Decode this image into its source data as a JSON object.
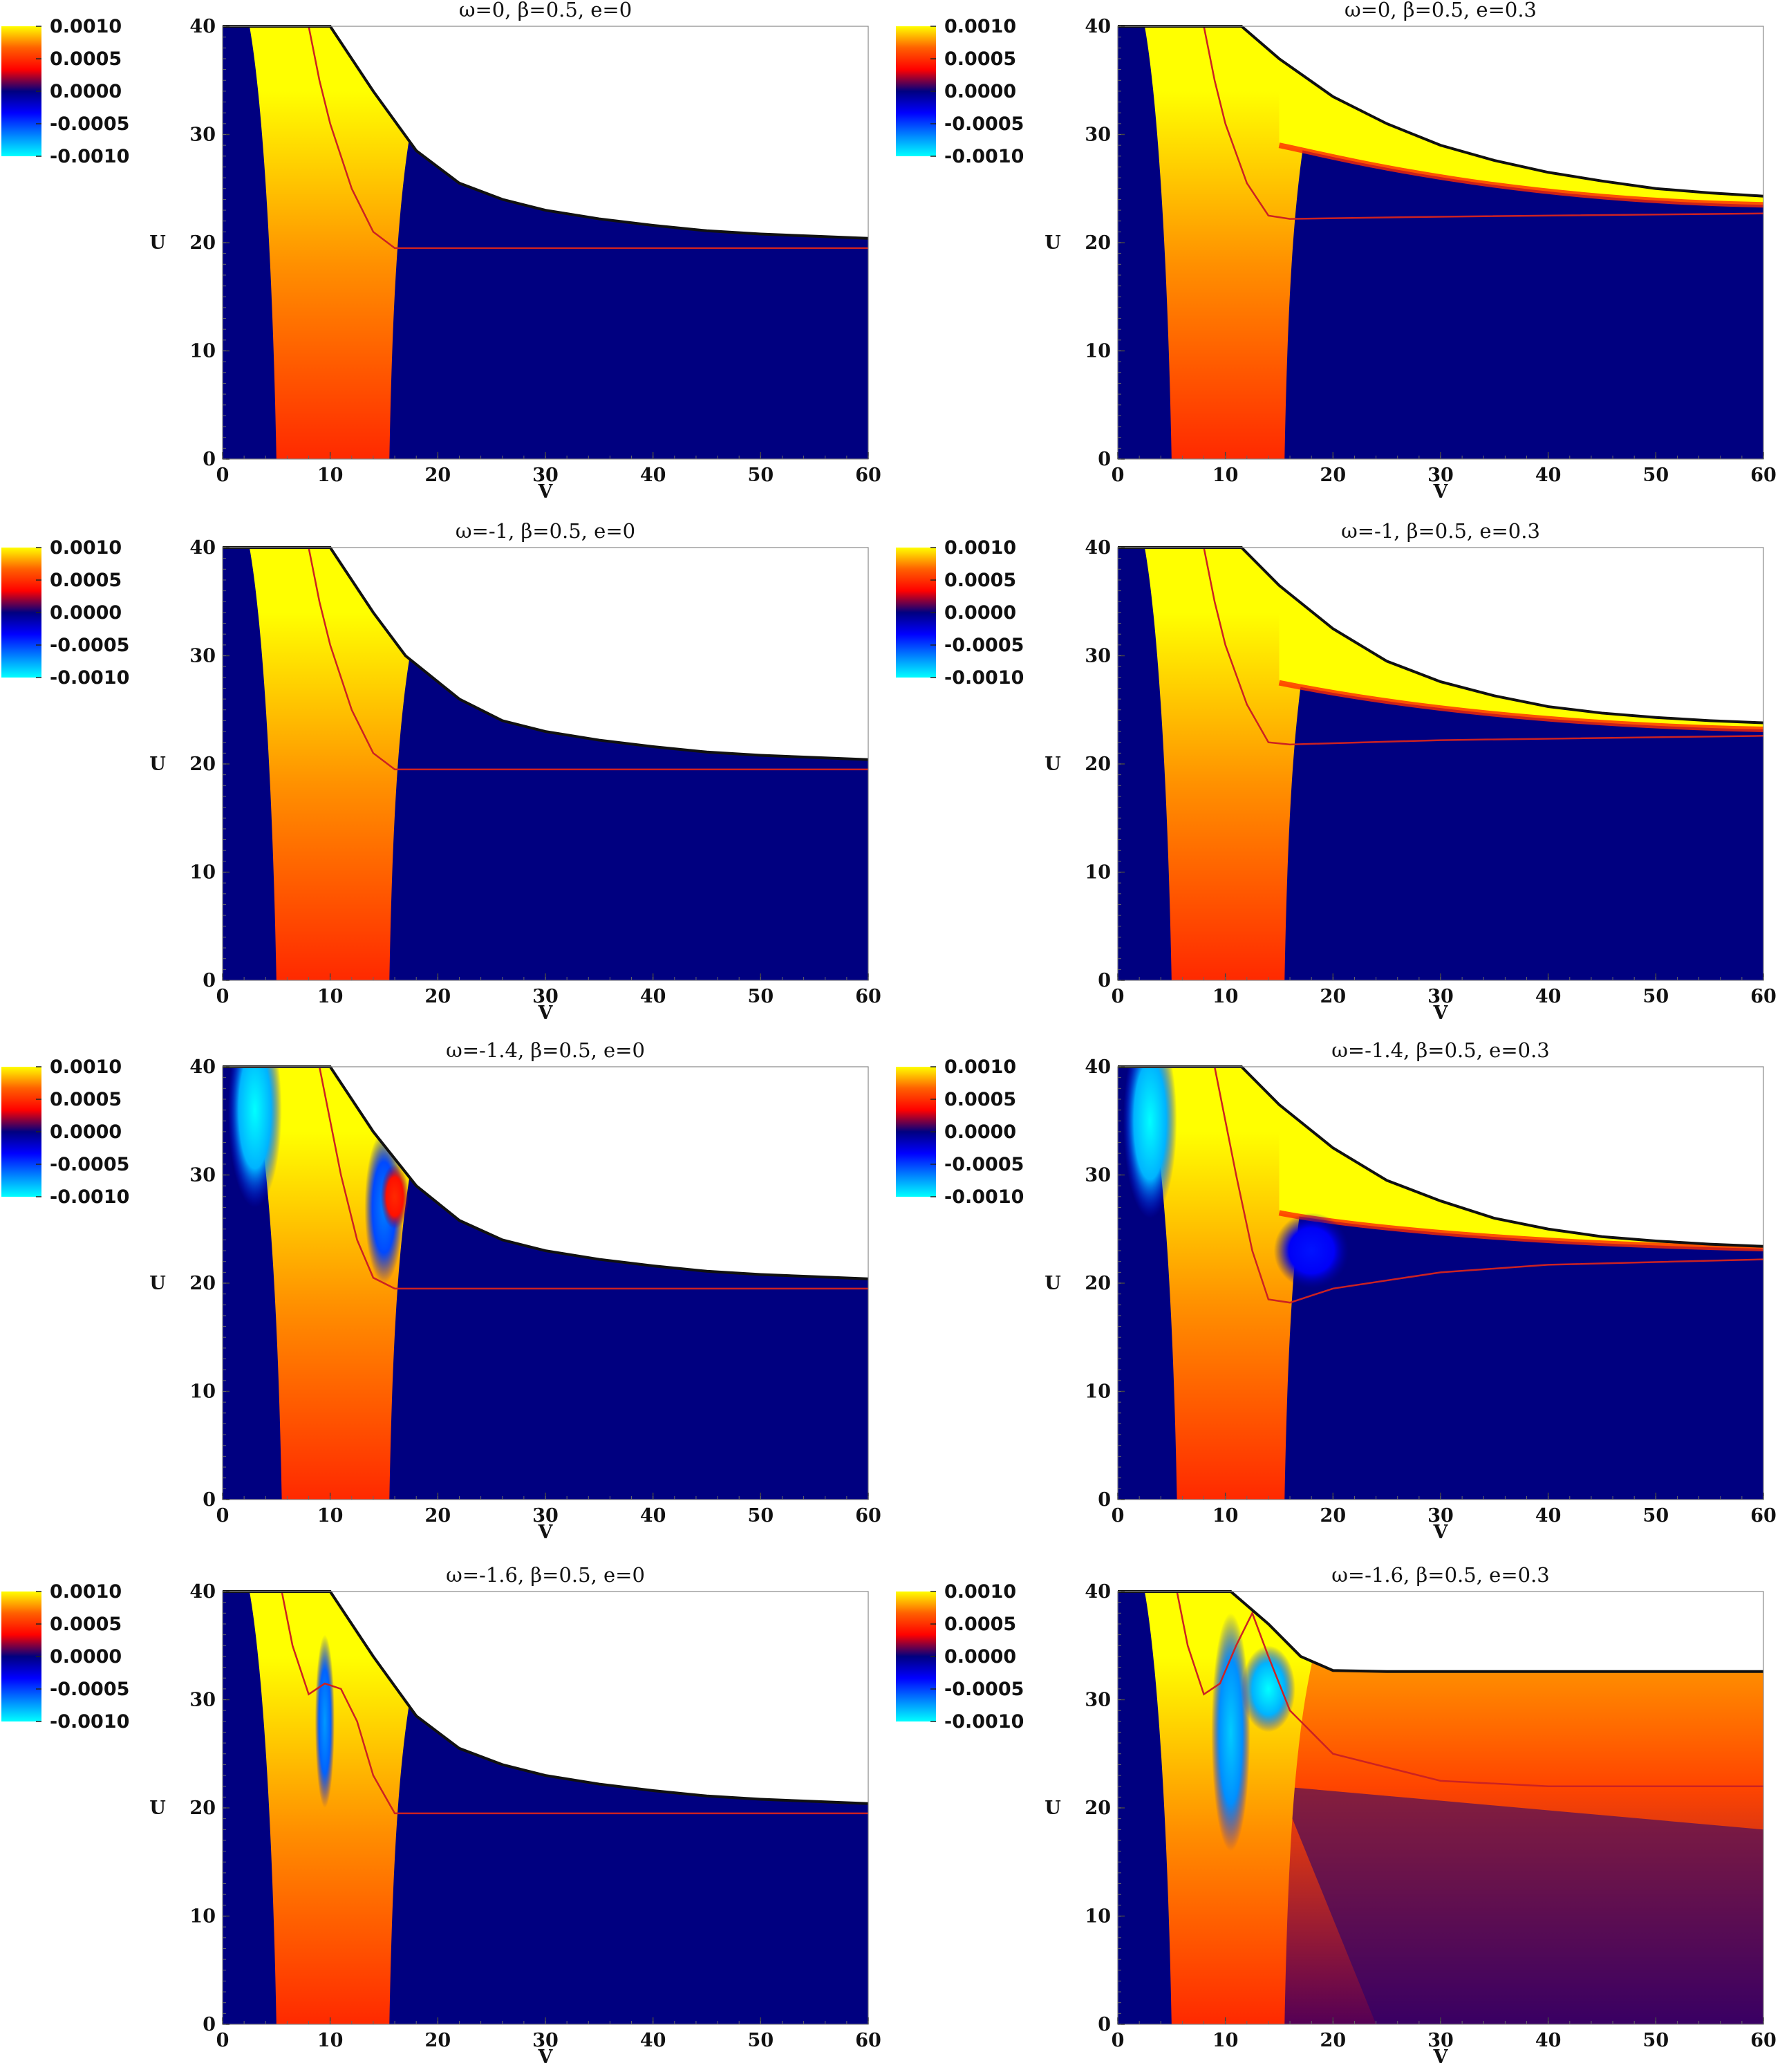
{
  "colormap": {
    "stops": [
      {
        "value": -0.001,
        "color": "#00ffff"
      },
      {
        "value": -0.0005,
        "color": "#0080ff"
      },
      {
        "value": -0.00015,
        "color": "#0000ff"
      },
      {
        "value": 0.0,
        "color": "#000080"
      },
      {
        "value": 0.00015,
        "color": "#ff0000"
      },
      {
        "value": 0.0005,
        "color": "#ff6000"
      },
      {
        "value": 0.001,
        "color": "#ffff00"
      }
    ],
    "tick_labels": [
      "0.0010",
      "0.0005",
      "0.0000",
      "-0.0005",
      "-0.0010"
    ]
  },
  "chart_data": [
    {
      "type": "heatmap",
      "title": "ω=0,   β=0.5,   e=0",
      "xlabel": "V",
      "ylabel": "U",
      "xlim": [
        0,
        60
      ],
      "ylim": [
        0,
        40
      ],
      "xticks": [
        "0",
        "10",
        "20",
        "30",
        "40",
        "50",
        "60"
      ],
      "yticks": [
        "0",
        "10",
        "20",
        "30",
        "40"
      ],
      "boundary": [
        [
          0,
          40
        ],
        [
          10,
          40
        ],
        [
          14,
          34
        ],
        [
          18,
          28.5
        ],
        [
          22,
          25.5
        ],
        [
          26,
          24
        ],
        [
          30,
          23
        ],
        [
          35,
          22.2
        ],
        [
          40,
          21.6
        ],
        [
          45,
          21.1
        ],
        [
          50,
          20.8
        ],
        [
          55,
          20.6
        ],
        [
          60,
          20.4
        ]
      ],
      "red_curve": [
        [
          8,
          40
        ],
        [
          9,
          35
        ],
        [
          10,
          31
        ],
        [
          12,
          25
        ],
        [
          14,
          21
        ],
        [
          16,
          19.5
        ],
        [
          60,
          19.5
        ]
      ],
      "features": [
        {
          "kind": "band",
          "v_left": 5,
          "v_right": 15.5,
          "u_bottom": 0,
          "u_top": 40,
          "value_bottom": 0.0003,
          "value_top": 0.001
        }
      ]
    },
    {
      "type": "heatmap",
      "title": "ω=0,   β=0.5,   e=0.3",
      "xlabel": "V",
      "ylabel": "U",
      "xlim": [
        0,
        60
      ],
      "ylim": [
        0,
        40
      ],
      "xticks": [
        "0",
        "10",
        "20",
        "30",
        "40",
        "50",
        "60"
      ],
      "yticks": [
        "0",
        "10",
        "20",
        "30",
        "40"
      ],
      "boundary": [
        [
          0,
          40
        ],
        [
          11.5,
          40
        ],
        [
          15,
          37
        ],
        [
          20,
          33.5
        ],
        [
          25,
          31
        ],
        [
          30,
          29
        ],
        [
          35,
          27.6
        ],
        [
          40,
          26.5
        ],
        [
          45,
          25.7
        ],
        [
          50,
          25
        ],
        [
          55,
          24.6
        ],
        [
          60,
          24.3
        ]
      ],
      "red_curve": [
        [
          8,
          40
        ],
        [
          9,
          35
        ],
        [
          10,
          31
        ],
        [
          12,
          25.5
        ],
        [
          14,
          22.5
        ],
        [
          16,
          22.2
        ],
        [
          30,
          22.4
        ],
        [
          60,
          22.7
        ]
      ],
      "features": [
        {
          "kind": "band",
          "v_left": 5,
          "v_right": 15.5,
          "u_bottom": 0,
          "u_top": 40,
          "value_bottom": 0.0003,
          "value_top": 0.001
        },
        {
          "kind": "strip",
          "v_left": 15,
          "u_near": 29,
          "u_far": 23.5,
          "value": 0.001
        }
      ]
    },
    {
      "type": "heatmap",
      "title": "ω=-1,   β=0.5,   e=0",
      "xlabel": "V",
      "ylabel": "U",
      "xlim": [
        0,
        60
      ],
      "ylim": [
        0,
        40
      ],
      "xticks": [
        "0",
        "10",
        "20",
        "30",
        "40",
        "50",
        "60"
      ],
      "yticks": [
        "0",
        "10",
        "20",
        "30",
        "40"
      ],
      "boundary": [
        [
          0,
          40
        ],
        [
          10,
          40
        ],
        [
          14,
          34
        ],
        [
          17,
          30
        ],
        [
          22,
          26
        ],
        [
          26,
          24
        ],
        [
          30,
          23
        ],
        [
          35,
          22.2
        ],
        [
          40,
          21.6
        ],
        [
          45,
          21.1
        ],
        [
          50,
          20.8
        ],
        [
          55,
          20.6
        ],
        [
          60,
          20.4
        ]
      ],
      "red_curve": [
        [
          8,
          40
        ],
        [
          9,
          35
        ],
        [
          10,
          31
        ],
        [
          12,
          25
        ],
        [
          14,
          21
        ],
        [
          16,
          19.5
        ],
        [
          60,
          19.5
        ]
      ],
      "features": [
        {
          "kind": "band",
          "v_left": 5,
          "v_right": 15.5,
          "u_bottom": 0,
          "u_top": 40,
          "value_bottom": 0.0003,
          "value_top": 0.001
        }
      ]
    },
    {
      "type": "heatmap",
      "title": "ω=-1,   β=0.5,   e=0.3",
      "xlabel": "V",
      "ylabel": "U",
      "xlim": [
        0,
        60
      ],
      "ylim": [
        0,
        40
      ],
      "xticks": [
        "0",
        "10",
        "20",
        "30",
        "40",
        "50",
        "60"
      ],
      "yticks": [
        "0",
        "10",
        "20",
        "30",
        "40"
      ],
      "boundary": [
        [
          0,
          40
        ],
        [
          11.5,
          40
        ],
        [
          15,
          36.5
        ],
        [
          20,
          32.5
        ],
        [
          25,
          29.5
        ],
        [
          30,
          27.6
        ],
        [
          35,
          26.3
        ],
        [
          40,
          25.3
        ],
        [
          45,
          24.7
        ],
        [
          50,
          24.3
        ],
        [
          55,
          24
        ],
        [
          60,
          23.8
        ]
      ],
      "red_curve": [
        [
          8,
          40
        ],
        [
          9,
          35
        ],
        [
          10,
          31
        ],
        [
          12,
          25.5
        ],
        [
          14,
          22
        ],
        [
          16,
          21.8
        ],
        [
          30,
          22.2
        ],
        [
          60,
          22.6
        ]
      ],
      "features": [
        {
          "kind": "band",
          "v_left": 5,
          "v_right": 15.5,
          "u_bottom": 0,
          "u_top": 40,
          "value_bottom": 0.0003,
          "value_top": 0.001
        },
        {
          "kind": "strip",
          "v_left": 15,
          "u_near": 27.5,
          "u_far": 23.2,
          "value": 0.001
        }
      ]
    },
    {
      "type": "heatmap",
      "title": "ω=-1.4,   β=0.5,   e=0",
      "xlabel": "V",
      "ylabel": "U",
      "xlim": [
        0,
        60
      ],
      "ylim": [
        0,
        40
      ],
      "xticks": [
        "0",
        "10",
        "20",
        "30",
        "40",
        "50",
        "60"
      ],
      "yticks": [
        "0",
        "10",
        "20",
        "30",
        "40"
      ],
      "boundary": [
        [
          0,
          40
        ],
        [
          10,
          40
        ],
        [
          14,
          34
        ],
        [
          18,
          29
        ],
        [
          22,
          25.8
        ],
        [
          26,
          24
        ],
        [
          30,
          23
        ],
        [
          35,
          22.2
        ],
        [
          40,
          21.6
        ],
        [
          45,
          21.1
        ],
        [
          50,
          20.8
        ],
        [
          55,
          20.6
        ],
        [
          60,
          20.4
        ]
      ],
      "red_curve": [
        [
          9,
          40
        ],
        [
          10,
          35
        ],
        [
          11,
          30
        ],
        [
          12.5,
          24
        ],
        [
          14,
          20.5
        ],
        [
          16,
          19.5
        ],
        [
          60,
          19.5
        ]
      ],
      "features": [
        {
          "kind": "band",
          "v_left": 5.5,
          "v_right": 15.5,
          "u_bottom": 0,
          "u_top": 40,
          "value_bottom": 0.0003,
          "value_top": 0.001
        },
        {
          "kind": "blob",
          "v": 3,
          "u": 36,
          "rv": 2.5,
          "ru": 9,
          "value": -0.001
        },
        {
          "kind": "blob",
          "v": 15,
          "u": 27,
          "rv": 1.8,
          "ru": 7,
          "value": -0.0005
        },
        {
          "kind": "blob",
          "v": 16,
          "u": 28,
          "rv": 1.3,
          "ru": 3,
          "value": 0.0003
        }
      ]
    },
    {
      "type": "heatmap",
      "title": "ω=-1.4,   β=0.5,   e=0.3",
      "xlabel": "V",
      "ylabel": "U",
      "xlim": [
        0,
        60
      ],
      "ylim": [
        0,
        40
      ],
      "xticks": [
        "0",
        "10",
        "20",
        "30",
        "40",
        "50",
        "60"
      ],
      "yticks": [
        "0",
        "10",
        "20",
        "30",
        "40"
      ],
      "boundary": [
        [
          0,
          40
        ],
        [
          11.5,
          40
        ],
        [
          15,
          36.5
        ],
        [
          20,
          32.5
        ],
        [
          25,
          29.5
        ],
        [
          30,
          27.6
        ],
        [
          35,
          26
        ],
        [
          40,
          25
        ],
        [
          45,
          24.3
        ],
        [
          50,
          23.9
        ],
        [
          55,
          23.6
        ],
        [
          60,
          23.4
        ]
      ],
      "red_curve": [
        [
          9,
          40
        ],
        [
          10,
          35
        ],
        [
          11,
          30
        ],
        [
          12.5,
          23
        ],
        [
          14,
          18.5
        ],
        [
          16,
          18.2
        ],
        [
          20,
          19.5
        ],
        [
          30,
          21
        ],
        [
          40,
          21.7
        ],
        [
          60,
          22.2
        ]
      ],
      "features": [
        {
          "kind": "band",
          "v_left": 5.5,
          "v_right": 15.5,
          "u_bottom": 0,
          "u_top": 40,
          "value_bottom": 0.0003,
          "value_top": 0.001
        },
        {
          "kind": "blob",
          "v": 3,
          "u": 35,
          "rv": 2.5,
          "ru": 9,
          "value": -0.001
        },
        {
          "kind": "blob",
          "v": 18,
          "u": 23,
          "rv": 3.5,
          "ru": 3.5,
          "value": -0.0002
        },
        {
          "kind": "strip",
          "v_left": 15,
          "u_near": 26.5,
          "u_far": 23.2,
          "value": 0.001
        }
      ]
    },
    {
      "type": "heatmap",
      "title": "ω=-1.6,   β=0.5,   e=0",
      "xlabel": "V",
      "ylabel": "U",
      "xlim": [
        0,
        60
      ],
      "ylim": [
        0,
        40
      ],
      "xticks": [
        "0",
        "10",
        "20",
        "30",
        "40",
        "50",
        "60"
      ],
      "yticks": [
        "0",
        "10",
        "20",
        "30",
        "40"
      ],
      "boundary": [
        [
          0,
          40
        ],
        [
          10,
          40
        ],
        [
          14,
          34
        ],
        [
          18,
          28.5
        ],
        [
          22,
          25.5
        ],
        [
          26,
          24
        ],
        [
          30,
          23
        ],
        [
          35,
          22.2
        ],
        [
          40,
          21.6
        ],
        [
          45,
          21.1
        ],
        [
          50,
          20.8
        ],
        [
          55,
          20.6
        ],
        [
          60,
          20.4
        ]
      ],
      "red_curve": [
        [
          5.5,
          40
        ],
        [
          6.5,
          35
        ],
        [
          8,
          30.5
        ],
        [
          9.5,
          31.5
        ],
        [
          11,
          31
        ],
        [
          12.5,
          28
        ],
        [
          14,
          23
        ],
        [
          16,
          19.5
        ],
        [
          60,
          19.5
        ]
      ],
      "features": [
        {
          "kind": "band",
          "v_left": 5,
          "v_right": 15.5,
          "u_bottom": 0,
          "u_top": 40,
          "value_bottom": 0.0003,
          "value_top": 0.001
        },
        {
          "kind": "blob",
          "v": 9.5,
          "u": 28,
          "rv": 0.9,
          "ru": 8,
          "value": -0.0006
        }
      ]
    },
    {
      "type": "heatmap",
      "title": "ω=-1.6,   β=0.5,   e=0.3",
      "xlabel": "V",
      "ylabel": "U",
      "xlim": [
        0,
        60
      ],
      "ylim": [
        0,
        40
      ],
      "xticks": [
        "0",
        "10",
        "20",
        "30",
        "40",
        "50",
        "60"
      ],
      "yticks": [
        "0",
        "10",
        "20",
        "30",
        "40"
      ],
      "boundary": [
        [
          0,
          40
        ],
        [
          10.5,
          40
        ],
        [
          14,
          37
        ],
        [
          17,
          34
        ],
        [
          20,
          32.7
        ],
        [
          25,
          32.6
        ],
        [
          60,
          32.6
        ]
      ],
      "red_curve": [
        [
          5.5,
          40
        ],
        [
          6.5,
          35
        ],
        [
          8,
          30.5
        ],
        [
          9.5,
          31.5
        ],
        [
          11,
          35
        ],
        [
          12.5,
          38
        ],
        [
          14,
          34
        ],
        [
          16,
          29
        ],
        [
          17,
          28
        ],
        [
          20,
          25
        ],
        [
          30,
          22.5
        ],
        [
          40,
          22
        ],
        [
          60,
          22
        ]
      ],
      "features": [
        {
          "kind": "band",
          "v_left": 5,
          "v_right": 15.5,
          "u_bottom": 0,
          "u_top": 40,
          "value_bottom": 0.0003,
          "value_top": 0.001
        },
        {
          "kind": "redfield",
          "v_left": 15,
          "value": 0.0004
        },
        {
          "kind": "blob",
          "v": 10.5,
          "u": 27,
          "rv": 1.8,
          "ru": 11,
          "value": -0.0008
        },
        {
          "kind": "blob",
          "v": 14,
          "u": 31,
          "rv": 2.5,
          "ru": 4,
          "value": -0.001
        }
      ]
    }
  ]
}
